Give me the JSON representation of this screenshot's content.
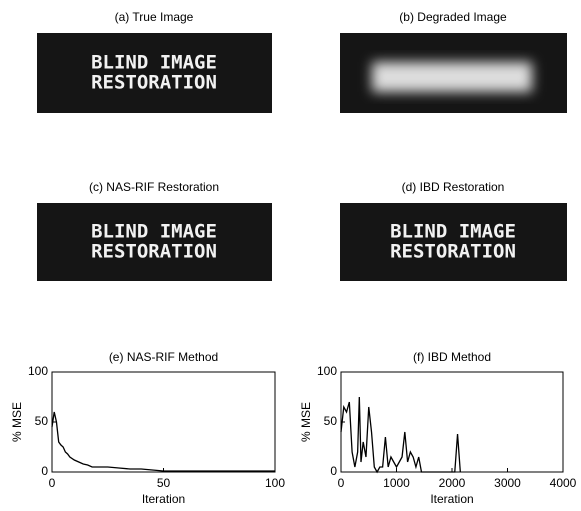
{
  "panels": [
    {
      "title": "(a) True Image",
      "text": [
        "BLIND IMAGE",
        "RESTORATION"
      ]
    },
    {
      "title": "(b) Degraded Image"
    },
    {
      "title": "(c) NAS-RIF Restoration",
      "text": [
        "BLIND IMAGE",
        "RESTORATION"
      ]
    },
    {
      "title": "(d) IBD Restoration",
      "text": [
        "BLIND IMAGE",
        "RESTORATION"
      ]
    }
  ],
  "chart_data": [
    {
      "type": "line",
      "title": "(e) NAS-RIF Method",
      "xlabel": "Iteration",
      "ylabel": "% MSE",
      "color": "#000000",
      "x": [
        0,
        1,
        2,
        3,
        4,
        5,
        6,
        7,
        8,
        10,
        12,
        14,
        16,
        18,
        20,
        25,
        30,
        35,
        40,
        45,
        50,
        60,
        70,
        80,
        90,
        100
      ],
      "values": [
        45,
        60,
        50,
        30,
        27,
        25,
        20,
        18,
        15,
        12,
        10,
        8,
        7,
        5,
        5,
        5,
        4,
        3,
        3,
        2,
        1,
        1,
        1,
        1,
        1,
        1
      ],
      "xlim": [
        0,
        100
      ],
      "xticks": [
        0,
        50,
        100
      ],
      "ylim": [
        0,
        100
      ],
      "yticks": [
        0,
        50,
        100
      ]
    },
    {
      "type": "line",
      "title": "(f) IBD Method",
      "xlabel": "Iteration",
      "ylabel": "% MSE",
      "color": "#000000",
      "x": [
        0,
        50,
        100,
        150,
        200,
        250,
        300,
        330,
        360,
        400,
        450,
        500,
        550,
        600,
        650,
        700,
        750,
        800,
        850,
        900,
        950,
        1000,
        1050,
        1100,
        1150,
        1200,
        1250,
        1300,
        1350,
        1400,
        1450,
        1500,
        2050,
        2100,
        2150
      ],
      "values": [
        40,
        65,
        60,
        70,
        20,
        5,
        20,
        75,
        10,
        30,
        15,
        65,
        40,
        5,
        0,
        5,
        5,
        35,
        5,
        15,
        10,
        5,
        10,
        15,
        40,
        10,
        20,
        15,
        5,
        15,
        0,
        0,
        0,
        38,
        0
      ],
      "xlim": [
        0,
        4000
      ],
      "xticks": [
        0,
        1000,
        2000,
        3000,
        4000
      ],
      "ylim": [
        0,
        100
      ],
      "yticks": [
        0,
        50,
        100
      ]
    }
  ]
}
